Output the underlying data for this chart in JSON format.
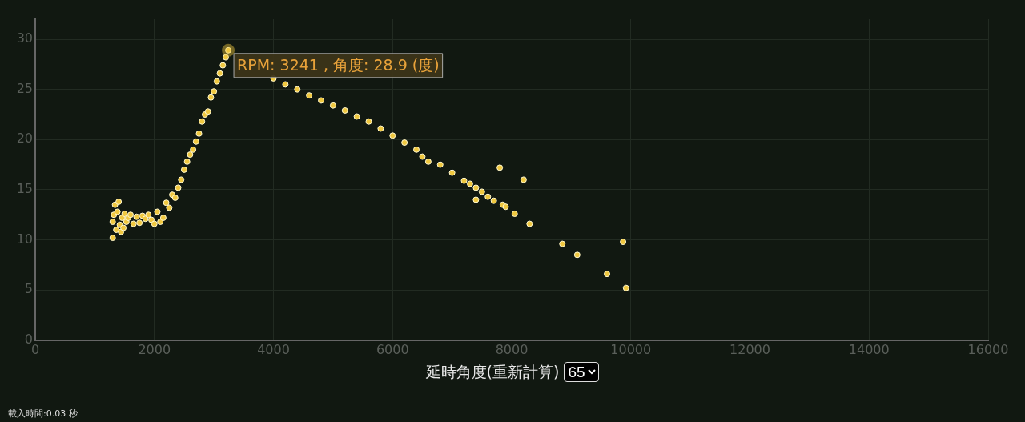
{
  "chart_data": {
    "type": "scatter",
    "xlabel": "延時角度(重新計算)",
    "xlim": [
      0,
      16000
    ],
    "xticks": [
      0,
      2000,
      4000,
      6000,
      8000,
      10000,
      12000,
      14000,
      16000
    ],
    "ylim": [
      0,
      32
    ],
    "yticks": [
      0,
      5,
      10,
      15,
      20,
      25,
      30
    ],
    "grid": true,
    "legend": false,
    "marker": "circle",
    "series": [
      {
        "color": "#f0c840",
        "x": [
          1300,
          1300,
          1320,
          1340,
          1360,
          1380,
          1400,
          1420,
          1440,
          1460,
          1480,
          1500,
          1530,
          1560,
          1600,
          1650,
          1700,
          1750,
          1800,
          1850,
          1900,
          1950,
          2000,
          2050,
          2100,
          2150,
          2200,
          2250,
          2300,
          2350,
          2400,
          2450,
          2500,
          2550,
          2600,
          2650,
          2700,
          2750,
          2800,
          2850,
          2900,
          2950,
          3000,
          3050,
          3100,
          3150,
          3200,
          3241,
          3300,
          3400,
          3500,
          3600,
          3800,
          4000,
          4200,
          4400,
          4600,
          4800,
          5000,
          5200,
          5400,
          5600,
          5800,
          6000,
          6200,
          6400,
          6500,
          6600,
          6800,
          7000,
          7200,
          7300,
          7400,
          7400,
          7500,
          7600,
          7700,
          7800,
          7850,
          7900,
          8050,
          8200,
          8300,
          8850,
          9100,
          9600,
          9870,
          9920
        ],
        "values": [
          10.2,
          11.8,
          12.5,
          13.5,
          11,
          12.8,
          13.8,
          11.5,
          10.8,
          12.2,
          11.2,
          12.6,
          11.8,
          12.2,
          12.5,
          11.6,
          12.3,
          11.7,
          12.4,
          12.1,
          12.5,
          12.0,
          11.6,
          12.8,
          11.8,
          12.2,
          13.7,
          13.2,
          14.5,
          14.2,
          15.2,
          16.0,
          17.0,
          17.8,
          18.5,
          19.0,
          19.8,
          20.6,
          21.8,
          22.5,
          22.8,
          24.2,
          24.8,
          25.8,
          26.6,
          27.4,
          28.2,
          28.9,
          null,
          null,
          null,
          null,
          null,
          26.1,
          25.5,
          25.0,
          24.4,
          23.9,
          23.4,
          22.9,
          22.3,
          21.8,
          21.1,
          20.4,
          19.7,
          19.0,
          18.3,
          17.8,
          17.5,
          16.7,
          15.9,
          15.6,
          15.2,
          14.0,
          14.8,
          14.3,
          13.9,
          17.2,
          13.5,
          13.3,
          12.6,
          16.0,
          11.6,
          9.6,
          8.5,
          6.6,
          9.8,
          5.2
        ]
      }
    ],
    "annotations": [
      {
        "text": "RPM: 3241 , 角度: 28.9 (度)",
        "x": 3241,
        "y": 28.9
      },
      "65",
      "載入時間:0.03 秒"
    ]
  }
}
